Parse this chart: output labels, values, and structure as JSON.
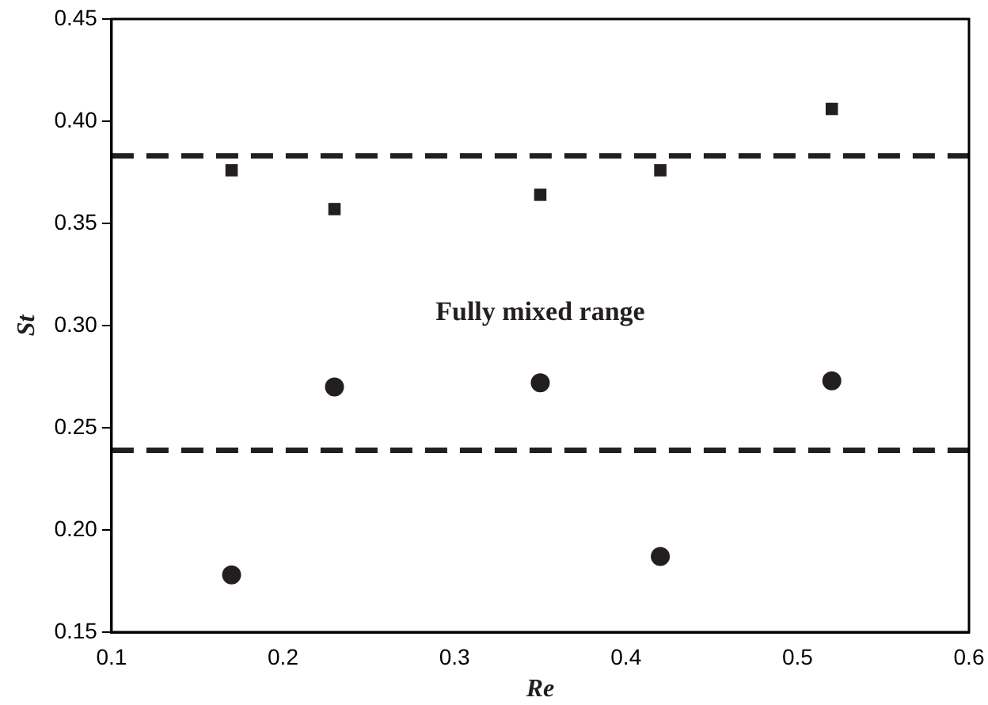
{
  "chart_data": {
    "type": "scatter",
    "xlabel": "Re",
    "ylabel": "St",
    "xlim": [
      0.1,
      0.6
    ],
    "xticks": [
      {
        "value": 0.1,
        "label": "0.1"
      },
      {
        "value": 0.2,
        "label": "0.2"
      },
      {
        "value": 0.3,
        "label": "0.3"
      },
      {
        "value": 0.4,
        "label": "0.4"
      },
      {
        "value": 0.5,
        "label": "0.5"
      },
      {
        "value": 0.6,
        "label": "0.6"
      }
    ],
    "ylim": [
      0.15,
      0.45
    ],
    "yticks": [
      {
        "value": 0.15,
        "label": "0.15"
      },
      {
        "value": 0.2,
        "label": "0.20"
      },
      {
        "value": 0.25,
        "label": "0.25"
      },
      {
        "value": 0.3,
        "label": "0.30"
      },
      {
        "value": 0.35,
        "label": "0.35"
      },
      {
        "value": 0.4,
        "label": "0.40"
      },
      {
        "value": 0.45,
        "label": "0.45"
      }
    ],
    "grid": false,
    "legend": false,
    "series": [
      {
        "color": "#231f20",
        "marker": "square",
        "x": [
          0.17,
          0.23,
          0.35,
          0.42,
          0.52
        ],
        "values": [
          0.376,
          0.357,
          0.364,
          0.376,
          0.406
        ]
      },
      {
        "color": "#231f20",
        "marker": "circle",
        "x": [
          0.17,
          0.23,
          0.35,
          0.42,
          0.52
        ],
        "values": [
          0.178,
          0.27,
          0.272,
          0.187,
          0.273
        ]
      }
    ],
    "ref_lines": [
      {
        "axis": "y",
        "value": 0.383,
        "color": "#231f20",
        "line_style": "dashed"
      },
      {
        "axis": "y",
        "value": 0.239,
        "color": "#231f20",
        "line_style": "dashed"
      }
    ],
    "annotations": [
      "Fully mixed range"
    ]
  }
}
